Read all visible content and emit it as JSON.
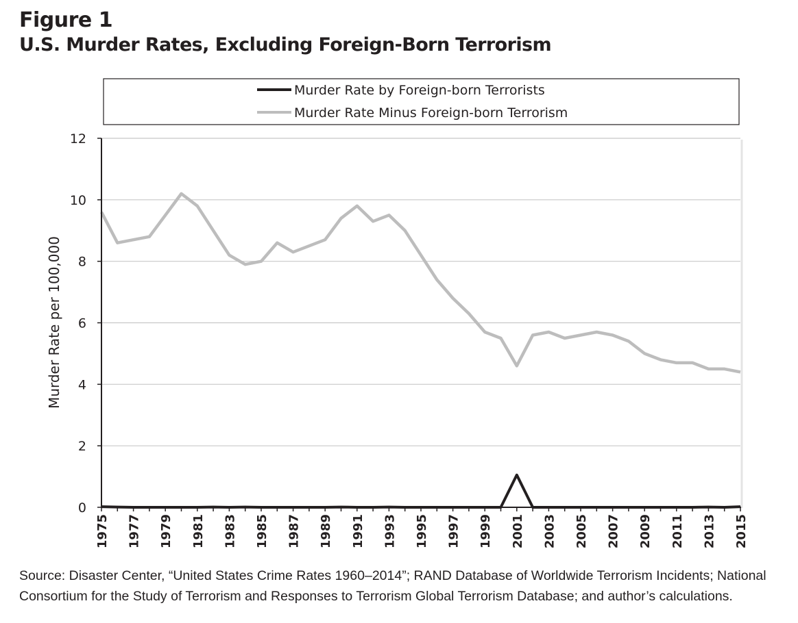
{
  "figure": {
    "label": "Figure 1",
    "title": "U.S. Murder Rates, Excluding Foreign-Born Terrorism",
    "source": "Source: Disaster Center, “United States Crime Rates 1960–2014”; RAND Database of Worldwide Terrorism Incidents; National Consortium for the Study of Terrorism and Responses to Terrorism Global Terrorism Database; and author’s calculations."
  },
  "chart_data": {
    "type": "line",
    "title": "U.S. Murder Rates, Excluding Foreign-Born Terrorism",
    "xlabel": "",
    "ylabel": "Murder Rate per 100,000",
    "ylim": [
      0,
      12
    ],
    "yticks": [
      0,
      2,
      4,
      6,
      8,
      10,
      12
    ],
    "xlim": [
      1975,
      2015
    ],
    "xticks": [
      1975,
      1977,
      1979,
      1981,
      1983,
      1985,
      1987,
      1989,
      1991,
      1993,
      1995,
      1997,
      1999,
      2001,
      2003,
      2005,
      2007,
      2009,
      2011,
      2013,
      2015
    ],
    "grid": true,
    "legend_position": "top",
    "x": [
      1975,
      1976,
      1977,
      1978,
      1979,
      1980,
      1981,
      1982,
      1983,
      1984,
      1985,
      1986,
      1987,
      1988,
      1989,
      1990,
      1991,
      1992,
      1993,
      1994,
      1995,
      1996,
      1997,
      1998,
      1999,
      2000,
      2001,
      2002,
      2003,
      2004,
      2005,
      2006,
      2007,
      2008,
      2009,
      2010,
      2011,
      2012,
      2013,
      2014,
      2015
    ],
    "series": [
      {
        "name": "Murder Rate by Foreign-born Terrorists",
        "color": "#231f20",
        "values": [
          0.02,
          0.01,
          0.0,
          0.0,
          0.0,
          0.0,
          0.0,
          0.01,
          0.0,
          0.01,
          0.0,
          0.0,
          0.0,
          0.0,
          0.0,
          0.01,
          0.0,
          0.0,
          0.01,
          0.0,
          0.0,
          0.0,
          0.0,
          0.0,
          0.0,
          0.0,
          1.05,
          0.0,
          0.0,
          0.0,
          0.0,
          0.0,
          0.0,
          0.0,
          0.0,
          0.0,
          0.0,
          0.0,
          0.01,
          0.0,
          0.02
        ]
      },
      {
        "name": "Murder Rate Minus Foreign-born Terrorism",
        "color": "#bdbdbd",
        "values": [
          9.6,
          8.6,
          8.7,
          8.8,
          9.5,
          10.2,
          9.8,
          9.0,
          8.2,
          7.9,
          8.0,
          8.6,
          8.3,
          8.5,
          8.7,
          9.4,
          9.8,
          9.3,
          9.5,
          9.0,
          8.2,
          7.4,
          6.8,
          6.3,
          5.7,
          5.5,
          4.6,
          5.6,
          5.7,
          5.5,
          5.6,
          5.7,
          5.6,
          5.4,
          5.0,
          4.8,
          4.7,
          4.7,
          4.5,
          4.5,
          4.4
        ]
      }
    ]
  }
}
